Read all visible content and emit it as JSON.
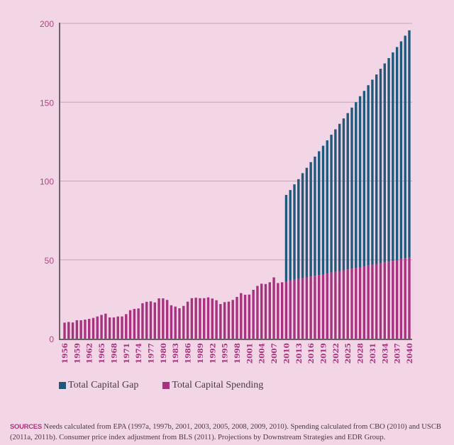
{
  "chart_data": {
    "type": "bar",
    "stacked": true,
    "title": "",
    "xlabel": "",
    "ylabel": "",
    "ylim": [
      0,
      200
    ],
    "yticks": [
      0,
      50,
      100,
      150,
      200
    ],
    "grid": true,
    "legend_position": "bottom-left",
    "x": [
      1956,
      1957,
      1958,
      1959,
      1960,
      1961,
      1962,
      1963,
      1964,
      1965,
      1966,
      1967,
      1968,
      1969,
      1970,
      1971,
      1972,
      1973,
      1974,
      1975,
      1976,
      1977,
      1978,
      1979,
      1980,
      1981,
      1982,
      1983,
      1984,
      1985,
      1986,
      1987,
      1988,
      1989,
      1990,
      1991,
      1992,
      1993,
      1994,
      1995,
      1996,
      1997,
      1998,
      1999,
      2000,
      2001,
      2002,
      2003,
      2004,
      2005,
      2006,
      2007,
      2008,
      2009,
      2010,
      2011,
      2012,
      2013,
      2014,
      2015,
      2016,
      2017,
      2018,
      2019,
      2020,
      2021,
      2022,
      2023,
      2024,
      2025,
      2026,
      2027,
      2028,
      2029,
      2030,
      2031,
      2032,
      2033,
      2034,
      2035,
      2036,
      2037,
      2038,
      2039,
      2040
    ],
    "xtick_labels": [
      "1956",
      "1959",
      "1962",
      "1965",
      "1968",
      "1971",
      "1974",
      "1977",
      "1980",
      "1983",
      "1986",
      "1989",
      "1992",
      "1995",
      "1998",
      "2001",
      "2004",
      "2007",
      "2010",
      "2013",
      "2016",
      "2019",
      "2022",
      "2025",
      "2028",
      "2031",
      "2034",
      "2037",
      "2040"
    ],
    "series": [
      {
        "name": "Total Capital Spending",
        "color": "#a8327f",
        "values": [
          10.2,
          10.6,
          10.3,
          11.7,
          11.7,
          12.1,
          12.6,
          13.2,
          14.1,
          15.1,
          15.9,
          13.5,
          13.5,
          14.1,
          14.1,
          15.6,
          18.1,
          18.9,
          19.2,
          22.5,
          23.4,
          23.7,
          23.0,
          25.6,
          25.6,
          24.6,
          21.2,
          20.4,
          19.3,
          20.8,
          23.5,
          25.7,
          26.0,
          25.7,
          25.7,
          26.2,
          25.5,
          24.4,
          22.0,
          23.2,
          23.5,
          24.6,
          26.5,
          28.9,
          27.9,
          28.0,
          31.0,
          33.5,
          34.9,
          34.7,
          35.8,
          38.9,
          35.3,
          35.8,
          36.4,
          36.9,
          37.4,
          37.9,
          38.4,
          38.9,
          39.4,
          39.9,
          40.4,
          40.9,
          41.4,
          41.9,
          42.4,
          42.9,
          43.4,
          43.9,
          44.4,
          44.9,
          45.4,
          45.9,
          46.4,
          46.9,
          47.4,
          47.9,
          48.4,
          48.9,
          49.4,
          49.9,
          50.4,
          50.9,
          51.5
        ]
      },
      {
        "name": "Total Capital Gap",
        "color": "#1f5a7d",
        "note": "values are stacked totals (top of blue bar) for 2010-2040; null before 2010",
        "totals": [
          null,
          null,
          null,
          null,
          null,
          null,
          null,
          null,
          null,
          null,
          null,
          null,
          null,
          null,
          null,
          null,
          null,
          null,
          null,
          null,
          null,
          null,
          null,
          null,
          null,
          null,
          null,
          null,
          null,
          null,
          null,
          null,
          null,
          null,
          null,
          null,
          null,
          null,
          null,
          null,
          null,
          null,
          null,
          null,
          null,
          null,
          null,
          null,
          null,
          null,
          null,
          null,
          null,
          null,
          91.2,
          94.3,
          97.9,
          101.2,
          105.0,
          108.4,
          112.0,
          115.5,
          118.9,
          122.4,
          125.8,
          129.4,
          132.8,
          136.3,
          139.7,
          143.1,
          146.6,
          150.0,
          153.8,
          157.2,
          160.8,
          164.3,
          167.6,
          171.2,
          174.6,
          178.0,
          181.6,
          185.0,
          188.6,
          192.2,
          195.6
        ]
      }
    ]
  },
  "legend": {
    "items": [
      {
        "label": "Total Capital Gap",
        "color": "#1f5a7d"
      },
      {
        "label": "Total Capital Spending",
        "color": "#a8327f"
      }
    ]
  },
  "sources": {
    "label": "SOURCES",
    "text": "Needs calculated from EPA (1997a, 1997b, 2001, 2003, 2005, 2008, 2009, 2010). Spending calculated from CBO (2010) and USCB (2011a, 2011b). Consumer price index adjustment from BLS (2011). Projections by Downstream Strategies and EDR Group."
  },
  "colors": {
    "background": "#f2d6e6",
    "axis": "#6e6068",
    "grid": "#c4a7b6"
  }
}
